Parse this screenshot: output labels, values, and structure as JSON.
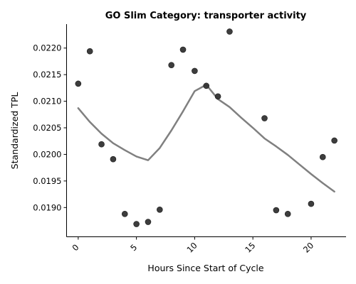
{
  "chart_data": {
    "type": "scatter",
    "title": "GO Slim Category: transporter activity",
    "xlabel": "Hours Since Start of Cycle",
    "ylabel": "Standardized TPL",
    "xlim": [
      -1,
      23
    ],
    "ylim": [
      0.01845,
      0.02245
    ],
    "x_ticks": [
      0,
      5,
      10,
      15,
      20
    ],
    "x_tick_labels": [
      "0",
      "5",
      "10",
      "15",
      "20"
    ],
    "y_ticks": [
      0.019,
      0.0195,
      0.02,
      0.0205,
      0.021,
      0.0215,
      0.022
    ],
    "y_tick_labels": [
      "0.0190",
      "0.0195",
      "0.0200",
      "0.0205",
      "0.0210",
      "0.0215",
      "0.0220"
    ],
    "grid": false,
    "point_color": "#333333",
    "line_color": "#808080",
    "points": [
      {
        "x": 0,
        "y": 0.02133
      },
      {
        "x": 1,
        "y": 0.02194
      },
      {
        "x": 2,
        "y": 0.02019
      },
      {
        "x": 3,
        "y": 0.01991
      },
      {
        "x": 4,
        "y": 0.01888
      },
      {
        "x": 5,
        "y": 0.01869
      },
      {
        "x": 6,
        "y": 0.01873
      },
      {
        "x": 7,
        "y": 0.01896
      },
      {
        "x": 8,
        "y": 0.02168
      },
      {
        "x": 9,
        "y": 0.02197
      },
      {
        "x": 10,
        "y": 0.02157
      },
      {
        "x": 11,
        "y": 0.02129
      },
      {
        "x": 12,
        "y": 0.02109
      },
      {
        "x": 13,
        "y": 0.02231
      },
      {
        "x": 16,
        "y": 0.02068
      },
      {
        "x": 17,
        "y": 0.01895
      },
      {
        "x": 18,
        "y": 0.01888
      },
      {
        "x": 20,
        "y": 0.01907
      },
      {
        "x": 21,
        "y": 0.01995
      },
      {
        "x": 22,
        "y": 0.02026
      }
    ],
    "trend_line": [
      {
        "x": 0,
        "y": 0.02087
      },
      {
        "x": 1,
        "y": 0.02061
      },
      {
        "x": 2,
        "y": 0.02039
      },
      {
        "x": 3,
        "y": 0.02021
      },
      {
        "x": 4,
        "y": 0.02008
      },
      {
        "x": 5,
        "y": 0.01996
      },
      {
        "x": 6,
        "y": 0.01989
      },
      {
        "x": 7,
        "y": 0.02012
      },
      {
        "x": 8,
        "y": 0.02045
      },
      {
        "x": 9,
        "y": 0.02081
      },
      {
        "x": 10,
        "y": 0.02119
      },
      {
        "x": 11,
        "y": 0.02131
      },
      {
        "x": 12,
        "y": 0.02104
      },
      {
        "x": 13,
        "y": 0.02089
      },
      {
        "x": 14,
        "y": 0.02069
      },
      {
        "x": 15,
        "y": 0.0205
      },
      {
        "x": 16,
        "y": 0.0203
      },
      {
        "x": 17,
        "y": 0.02015
      },
      {
        "x": 18,
        "y": 0.01999
      },
      {
        "x": 19,
        "y": 0.01981
      },
      {
        "x": 20,
        "y": 0.01963
      },
      {
        "x": 21,
        "y": 0.01946
      },
      {
        "x": 22,
        "y": 0.0193
      }
    ]
  }
}
